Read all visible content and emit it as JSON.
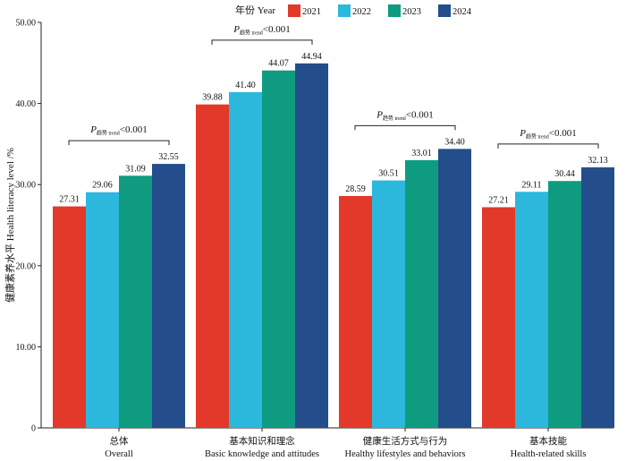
{
  "chart_data": {
    "type": "bar",
    "legend_title": "年份 Year",
    "legend_position": "top-center",
    "ylabel": "健康素养水平 Health literacy level /%",
    "xlabel": "",
    "ylim": [
      0,
      50
    ],
    "yticks": [
      "0",
      "10.00",
      "20.00",
      "30.00",
      "40.00",
      "50.00"
    ],
    "grid": false,
    "categories": [
      {
        "zh": "总体",
        "en": "Overall"
      },
      {
        "zh": "基本知识和理念",
        "en": "Basic knowledge and attitudes"
      },
      {
        "zh": "健康生活方式与行为",
        "en": "Healthy lifestyles and behaviors"
      },
      {
        "zh": "基本技能",
        "en": "Health-related skills"
      }
    ],
    "series": [
      {
        "name": "2021",
        "color": "#e2392a",
        "values": [
          27.31,
          39.88,
          28.59,
          27.21
        ],
        "labels": [
          "27.31",
          "39.88",
          "28.59",
          "27.21"
        ]
      },
      {
        "name": "2022",
        "color": "#2cb7dc",
        "values": [
          29.06,
          41.4,
          30.51,
          29.11
        ],
        "labels": [
          "29.06",
          "41.40",
          "30.51",
          "29.11"
        ]
      },
      {
        "name": "2023",
        "color": "#0f9b7f",
        "values": [
          31.09,
          44.07,
          33.01,
          30.44
        ],
        "labels": [
          "31.09",
          "44.07",
          "33.01",
          "30.44"
        ]
      },
      {
        "name": "2024",
        "color": "#234e8b",
        "values": [
          32.55,
          44.94,
          34.4,
          32.13
        ],
        "labels": [
          "32.55",
          "44.94",
          "34.40",
          "32.13"
        ]
      }
    ],
    "annotation": {
      "p": "P",
      "sub": "趋势 trend",
      "rest": "<0.001"
    }
  }
}
